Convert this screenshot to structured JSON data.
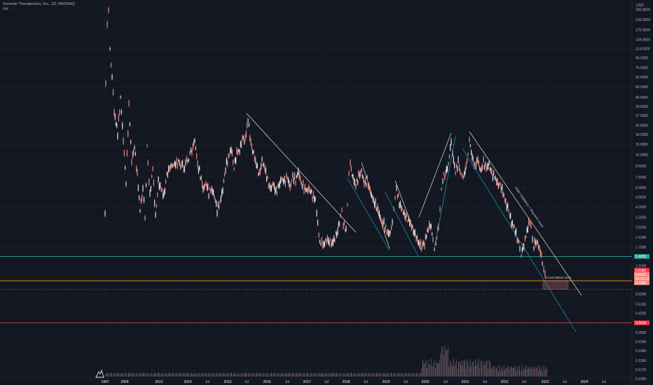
{
  "header": {
    "symbol_line": "Sorrento Therapeutics, Inc., 1D, NASDAQ",
    "volume_label": "Vol",
    "currency": "USD"
  },
  "icons": {
    "logo": "tradingview-logo-icon"
  },
  "colors": {
    "background": "#131722",
    "grid": "#1f2431",
    "candle_up": "#e0e3eb",
    "candle_down": "#ef8a80",
    "trendline": "#e8e0c8",
    "channel_line": "#17a2b8",
    "support_line": "#26a69a",
    "resistance_red": "#f23645",
    "orange_line": "#ff9800"
  },
  "chart_data": {
    "type": "candlestick",
    "y_scale": "log",
    "y_tick_labels": [
      "260.0000",
      "210.0000",
      "170.0000",
      "138.0000",
      "114.0000",
      "94.0000",
      "76.0000",
      "62.5000",
      "50.5000",
      "40.5000",
      "33.5000",
      "27.5000",
      "22.5000",
      "18.5000",
      "15.0000",
      "12.0000",
      "9.5000",
      "7.5000",
      "6.0000",
      "4.9000",
      "4.0000",
      "3.2000",
      "2.6000",
      "2.1000",
      "1.7000",
      "1.1500",
      "0.6300",
      "0.5100",
      "0.4200",
      "0.2800",
      "0.2300",
      "0.1900",
      "0.1550",
      "0.1270",
      "0.1050"
    ],
    "x_tick_labels": [
      "1997",
      "2009",
      "2013",
      "2014",
      "Jul",
      "2015",
      "Jul",
      "2016",
      "Jul",
      "2017",
      "Jul",
      "2018",
      "Jul",
      "2019",
      "Jul",
      "2020",
      "Jul",
      "2021",
      "Jul",
      "2022",
      "Jul",
      "2023",
      "Jul",
      "2024",
      "Jul"
    ],
    "price_tags": [
      {
        "label": "1.4000",
        "value": 1.4,
        "color": "#26a69a"
      },
      {
        "label": "0.8381",
        "value": 0.8381,
        "color": "#f23645"
      },
      {
        "label": "0.8021",
        "value": 0.8021,
        "color": "#ef8a80"
      },
      {
        "label": "01:15:13",
        "value": 0.77,
        "color": "#ef8a80"
      },
      {
        "label": "0.7000",
        "value": 0.7,
        "color": "#ef8a80"
      },
      {
        "label": "0.3439",
        "value": 0.3439,
        "color": "#f23645"
      }
    ],
    "annotations": [
      {
        "text": "accumulation zone"
      },
      {
        "text": "major resistance + long-term trend"
      }
    ],
    "approx_price_path": [
      {
        "x": "1997",
        "high": 260,
        "low": 3.5
      },
      {
        "x": "2009",
        "high": 30,
        "low": 2.5
      },
      {
        "x": "2013",
        "high": 13,
        "low": 2.5
      },
      {
        "x": "2014",
        "high": 14,
        "low": 3
      },
      {
        "x": "2015 Jul",
        "high": 24,
        "low": 3
      },
      {
        "x": "2016",
        "high": 10,
        "low": 4
      },
      {
        "x": "2017",
        "high": 7,
        "low": 3
      },
      {
        "x": "2017 Jul",
        "high": 2.3,
        "low": 1.5
      },
      {
        "x": "2018 Jul",
        "high": 8.5,
        "low": 1.6
      },
      {
        "x": "2019 Jul",
        "high": 6,
        "low": 1.5
      },
      {
        "x": "2020 Jul",
        "high": 19.5,
        "low": 1.5
      },
      {
        "x": "2021",
        "high": 18,
        "low": 6
      },
      {
        "x": "2022",
        "high": 7,
        "low": 1.5
      },
      {
        "x": "2023",
        "high": 1.6,
        "low": 0.8
      }
    ],
    "grid": true
  }
}
